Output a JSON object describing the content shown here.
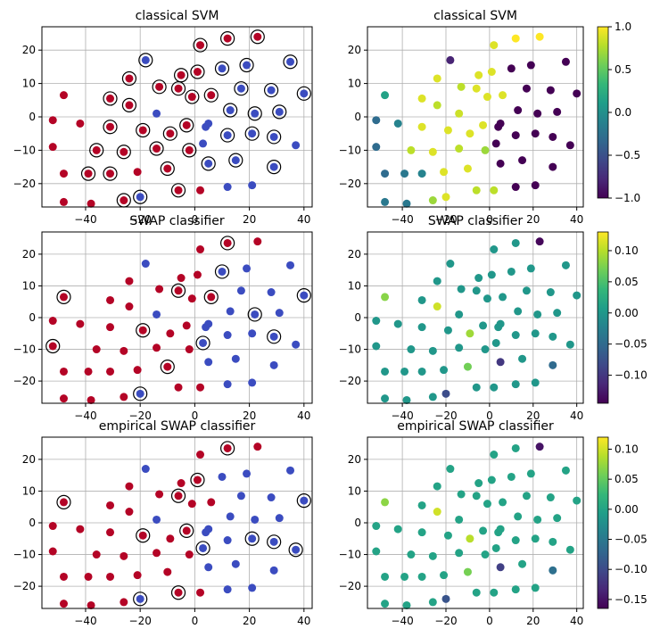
{
  "points": [
    [
      -48,
      6.5
    ],
    [
      -52,
      -1
    ],
    [
      -42,
      -2
    ],
    [
      -36,
      -10
    ],
    [
      -52,
      -9
    ],
    [
      -48,
      -17
    ],
    [
      -39,
      -17
    ],
    [
      -31,
      -17
    ],
    [
      -48,
      -25.5
    ],
    [
      -38,
      -26
    ],
    [
      -26,
      -25
    ],
    [
      -20,
      -24
    ],
    [
      -6,
      -22
    ],
    [
      -21,
      -16.5
    ],
    [
      -10,
      -15.5
    ],
    [
      2,
      -22
    ],
    [
      -26,
      -10.5
    ],
    [
      -14,
      -9.5
    ],
    [
      -2,
      -10
    ],
    [
      -31,
      -3
    ],
    [
      -19,
      -4
    ],
    [
      -9,
      -5
    ],
    [
      -3,
      -2.5
    ],
    [
      -1,
      6
    ],
    [
      -31,
      5.5
    ],
    [
      -24,
      3.5
    ],
    [
      -24,
      11.5
    ],
    [
      -13,
      9
    ],
    [
      -6,
      8.5
    ],
    [
      6,
      6.5
    ],
    [
      -18,
      17
    ],
    [
      -5,
      12.5
    ],
    [
      1,
      13.5
    ],
    [
      2,
      21.5
    ],
    [
      12,
      23.5
    ],
    [
      23,
      24
    ],
    [
      10,
      14.5
    ],
    [
      19,
      15.5
    ],
    [
      35,
      16.5
    ],
    [
      17,
      8.5
    ],
    [
      28,
      8
    ],
    [
      40,
      7
    ],
    [
      13,
      2
    ],
    [
      22,
      1
    ],
    [
      31,
      1.5
    ],
    [
      3,
      -8
    ],
    [
      12,
      -5.5
    ],
    [
      21,
      -5
    ],
    [
      29,
      -6
    ],
    [
      37,
      -8.5
    ],
    [
      5,
      -14
    ],
    [
      15,
      -13
    ],
    [
      29,
      -15
    ],
    [
      4,
      -3
    ],
    [
      -14,
      1
    ],
    [
      21,
      -20.5
    ],
    [
      12,
      -21
    ],
    [
      5,
      -2
    ]
  ],
  "sv_circles": {
    "svm": [
      3,
      6,
      7,
      10,
      11,
      12,
      14,
      16,
      17,
      18,
      19,
      20,
      21,
      22,
      23,
      24,
      25,
      26,
      27,
      28,
      29,
      30,
      31,
      32,
      33,
      34,
      35,
      36,
      37,
      38,
      39,
      40,
      41,
      42,
      43,
      44,
      46,
      47,
      48,
      50,
      51,
      52
    ],
    "swap": [
      0,
      4,
      11,
      14,
      20,
      28,
      29,
      34,
      36,
      41,
      43,
      45,
      48
    ],
    "emp": [
      0,
      11,
      12,
      20,
      22,
      28,
      32,
      34,
      41,
      45,
      47,
      48,
      49
    ]
  },
  "chart_data": [
    {
      "type": "scatter",
      "title": "classical SVM",
      "color_by": "predicted class",
      "classes": [
        "red",
        "blue"
      ],
      "red_indices": [
        0,
        1,
        2,
        3,
        4,
        5,
        6,
        7,
        8,
        9,
        10,
        12,
        13,
        14,
        15,
        16,
        17,
        18,
        19,
        20,
        21,
        22,
        23,
        24,
        25,
        26,
        27,
        28,
        29,
        31,
        32,
        33,
        34,
        35
      ],
      "xlim": [
        -56,
        43
      ],
      "ylim": [
        -27,
        27
      ],
      "xticks": [
        "−40",
        "−20",
        "0",
        "20",
        "40"
      ],
      "yticks": [
        "20",
        "10",
        "0",
        "−10",
        "−20"
      ],
      "grid": true
    },
    {
      "type": "scatter",
      "title": "classical SVM",
      "colormap": "viridis",
      "values": [
        0.15,
        -0.3,
        -0.1,
        0.8,
        -0.3,
        -0.3,
        -0.2,
        -0.1,
        -0.2,
        -0.2,
        0.7,
        0.9,
        0.8,
        0.9,
        0.9,
        0.8,
        0.9,
        0.8,
        0.7,
        0.9,
        0.9,
        0.9,
        0.9,
        0.9,
        0.9,
        0.8,
        0.9,
        0.8,
        0.9,
        0.9,
        -0.8,
        0.9,
        0.9,
        0.9,
        1.0,
        1.0,
        -1,
        -1,
        -1,
        -1,
        -1,
        -1,
        -1,
        -1,
        -1,
        -1,
        -1,
        -1,
        -1,
        -1,
        -1,
        -1,
        -1,
        -1,
        0.85,
        -1,
        -1,
        -1
      ],
      "xlim": [
        -56,
        43
      ],
      "ylim": [
        -27,
        27
      ],
      "xticks": [
        "−40",
        "−20",
        "0",
        "20",
        "40"
      ],
      "yticks": [
        "20",
        "10",
        "0",
        "−10",
        "−20"
      ],
      "grid": true,
      "colorbar": {
        "min": -1.0,
        "max": 1.0,
        "ticks": [
          "1.0",
          "0.5",
          "0.0",
          "−0.5",
          "−1.0"
        ]
      }
    },
    {
      "type": "scatter",
      "title": "SWAP classifier",
      "color_by": "predicted class",
      "red_indices": [
        0,
        1,
        2,
        3,
        4,
        5,
        6,
        7,
        8,
        9,
        10,
        12,
        13,
        14,
        15,
        16,
        17,
        18,
        19,
        20,
        21,
        22,
        23,
        24,
        25,
        26,
        27,
        28,
        29,
        31,
        32,
        33,
        34,
        35
      ],
      "xlim": [
        -56,
        43
      ],
      "ylim": [
        -27,
        27
      ],
      "xticks": [
        "−40",
        "−20",
        "0",
        "20",
        "40"
      ],
      "yticks": [
        "20",
        "10",
        "0",
        "−10",
        "−20"
      ],
      "grid": true
    },
    {
      "type": "scatter",
      "title": "SWAP classifier",
      "colormap": "viridis",
      "values": [
        0.08,
        0,
        0,
        0,
        0,
        0,
        0,
        0,
        0,
        0,
        0,
        -0.08,
        0,
        0,
        0.07,
        0,
        0,
        0,
        0,
        0,
        0,
        0.09,
        0,
        0,
        0,
        0.11,
        0,
        0,
        0,
        0,
        0,
        0,
        0,
        0,
        0,
        -0.14,
        0,
        0,
        0,
        0,
        0,
        0,
        0,
        0,
        0,
        0,
        0,
        0,
        0,
        0,
        -0.1,
        0,
        -0.05,
        0,
        0,
        0,
        0,
        0
      ],
      "xlim": [
        -56,
        43
      ],
      "ylim": [
        -27,
        27
      ],
      "xticks": [
        "−40",
        "−20",
        "0",
        "20",
        "40"
      ],
      "yticks": [
        "20",
        "10",
        "0",
        "−10",
        "−20"
      ],
      "grid": true,
      "colorbar": {
        "min": -0.145,
        "max": 0.13,
        "ticks": [
          "0.10",
          "0.05",
          "0.00",
          "−0.05",
          "−0.10"
        ]
      }
    },
    {
      "type": "scatter",
      "title": "empirical SWAP classifier",
      "color_by": "predicted class",
      "red_indices": [
        0,
        1,
        2,
        3,
        4,
        5,
        6,
        7,
        8,
        9,
        10,
        12,
        13,
        14,
        15,
        16,
        17,
        18,
        19,
        20,
        21,
        22,
        23,
        24,
        25,
        26,
        27,
        28,
        29,
        31,
        32,
        33,
        34,
        35
      ],
      "xlim": [
        -56,
        43
      ],
      "ylim": [
        -27,
        27
      ],
      "xticks": [
        "−40",
        "−20",
        "0",
        "20",
        "40"
      ],
      "yticks": [
        "20",
        "10",
        "0",
        "−10",
        "−20"
      ],
      "grid": true
    },
    {
      "type": "scatter",
      "title": "empirical SWAP classifier",
      "colormap": "viridis",
      "values": [
        0.07,
        0,
        0,
        0,
        0,
        0,
        0,
        0,
        0,
        0,
        0,
        -0.09,
        0,
        0,
        0.06,
        0,
        0,
        0,
        0,
        0,
        0,
        0.09,
        0,
        0,
        0,
        0.1,
        0,
        0,
        0,
        0,
        0,
        0,
        0,
        0,
        0,
        -0.15,
        0,
        0,
        0,
        0,
        0,
        0,
        0,
        0,
        0,
        0,
        0,
        0,
        0,
        0,
        -0.11,
        0,
        -0.06,
        0,
        0,
        0,
        0,
        0
      ],
      "xlim": [
        -56,
        43
      ],
      "ylim": [
        -27,
        27
      ],
      "xticks": [
        "−40",
        "−20",
        "0",
        "20",
        "40"
      ],
      "yticks": [
        "20",
        "10",
        "0",
        "−10",
        "−20"
      ],
      "grid": true,
      "colorbar": {
        "min": -0.165,
        "max": 0.12,
        "ticks": [
          "0.10",
          "0.05",
          "0.00",
          "−0.05",
          "−0.10",
          "−0.15"
        ]
      }
    }
  ]
}
